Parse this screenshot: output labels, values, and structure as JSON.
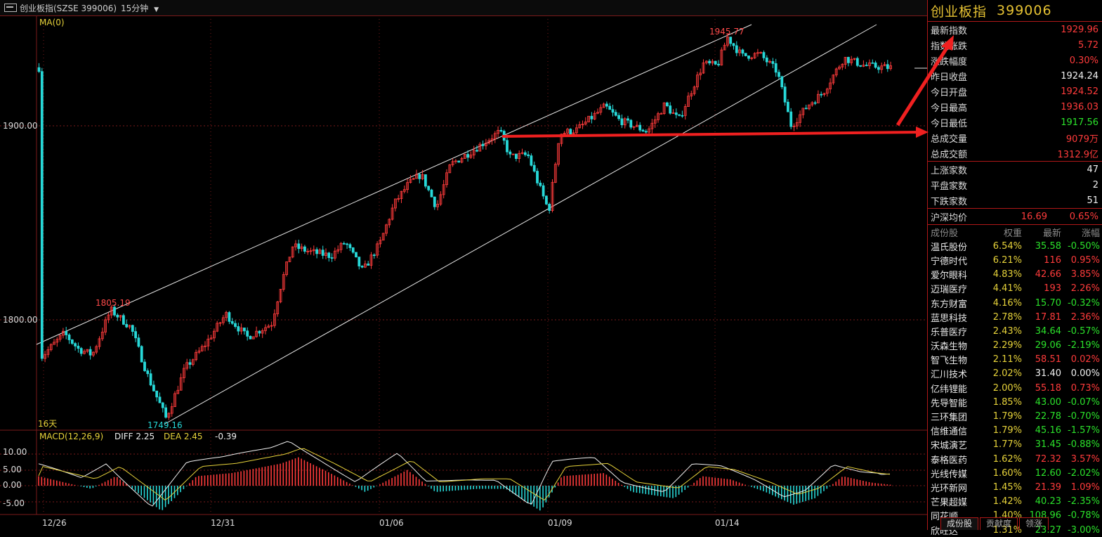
{
  "window": {
    "title": "创业板指(SZSE 399006)",
    "period": "15分钟"
  },
  "chart": {
    "ma_label": "MA(0)",
    "days_label": "16天",
    "y_ticks": [
      "1900.00",
      "1800.00"
    ],
    "x_ticks": [
      "12/26",
      "12/31",
      "01/06",
      "01/09",
      "01/14"
    ],
    "high_label": "1945.77",
    "low_label": "1749.16",
    "mid_high_label": "1805.19",
    "macd_label": "MACD(12,26,9)",
    "diff_label": "DIFF 2.25",
    "dea_label": "DEA 2.45",
    "macd_value": "-0.39",
    "macd_ticks": [
      "10.00",
      "5.00",
      "0.00",
      "-5.00"
    ]
  },
  "chart_data": {
    "type": "candlestick",
    "ylim": [
      1749.16,
      1945.77
    ],
    "marked_high": 1945.77,
    "marked_low": 1749.16,
    "marked_swing": 1805.19
  },
  "panel": {
    "name": "创业板指",
    "code": "399006",
    "quote": [
      {
        "k": "最新指数",
        "v": "1929.96",
        "c": "red"
      },
      {
        "k": "指数涨跌",
        "v": "5.72",
        "c": "red"
      },
      {
        "k": "涨跌幅度",
        "v": "0.30%",
        "c": "red"
      },
      {
        "k": "昨日收盘",
        "v": "1924.24",
        "c": "white"
      },
      {
        "k": "今日开盘",
        "v": "1924.52",
        "c": "red"
      },
      {
        "k": "今日最高",
        "v": "1936.03",
        "c": "red"
      },
      {
        "k": "今日最低",
        "v": "1917.56",
        "c": "green"
      },
      {
        "k": "总成交量",
        "v": "9079万",
        "c": "red"
      },
      {
        "k": "总成交额",
        "v": "1312.9亿",
        "c": "red"
      }
    ],
    "breadth": [
      {
        "k": "上涨家数",
        "v": "47"
      },
      {
        "k": "平盘家数",
        "v": "2"
      },
      {
        "k": "下跌家数",
        "v": "51"
      }
    ],
    "avg": {
      "k": "沪深均价",
      "v1": "16.69",
      "v2": "0.65%"
    },
    "cons_head": [
      "成份股",
      "权重",
      "最新",
      "涨幅"
    ],
    "constituents": [
      [
        "温氏股份",
        "6.54%",
        "35.58",
        "-0.50%",
        "g"
      ],
      [
        "宁德时代",
        "6.21%",
        "116",
        "0.95%",
        "r"
      ],
      [
        "爱尔眼科",
        "4.83%",
        "42.66",
        "3.85%",
        "r"
      ],
      [
        "迈瑞医疗",
        "4.41%",
        "193",
        "2.26%",
        "r"
      ],
      [
        "东方财富",
        "4.16%",
        "15.70",
        "-0.32%",
        "g"
      ],
      [
        "蓝思科技",
        "2.78%",
        "17.81",
        "2.36%",
        "r"
      ],
      [
        "乐普医疗",
        "2.43%",
        "34.64",
        "-0.57%",
        "g"
      ],
      [
        "沃森生物",
        "2.29%",
        "29.06",
        "-2.19%",
        "g"
      ],
      [
        "智飞生物",
        "2.11%",
        "58.51",
        "0.02%",
        "r"
      ],
      [
        "汇川技术",
        "2.02%",
        "31.40",
        "0.00%",
        "w"
      ],
      [
        "亿纬锂能",
        "2.00%",
        "55.18",
        "0.73%",
        "r"
      ],
      [
        "先导智能",
        "1.85%",
        "43.00",
        "-0.07%",
        "g"
      ],
      [
        "三环集团",
        "1.79%",
        "22.78",
        "-0.70%",
        "g"
      ],
      [
        "信维通信",
        "1.79%",
        "45.16",
        "-1.57%",
        "g"
      ],
      [
        "宋城演艺",
        "1.77%",
        "31.45",
        "-0.88%",
        "g"
      ],
      [
        "泰格医药",
        "1.62%",
        "72.32",
        "3.57%",
        "r"
      ],
      [
        "光线传媒",
        "1.60%",
        "12.60",
        "-2.02%",
        "g"
      ],
      [
        "光环新网",
        "1.45%",
        "21.39",
        "1.09%",
        "r"
      ],
      [
        "芒果超媒",
        "1.42%",
        "40.23",
        "-2.35%",
        "g"
      ],
      [
        "同花顺",
        "1.40%",
        "108.96",
        "-0.78%",
        "g"
      ],
      [
        "欣旺达",
        "1.31%",
        "23.27",
        "-3.00%",
        "g"
      ]
    ],
    "tabs": [
      "成份股",
      "贡献度",
      "领涨"
    ]
  },
  "colors": {
    "up": "#ff3b3b",
    "down": "#27d8d8",
    "grid": "#7a1a1a",
    "accent": "#e6c233"
  }
}
